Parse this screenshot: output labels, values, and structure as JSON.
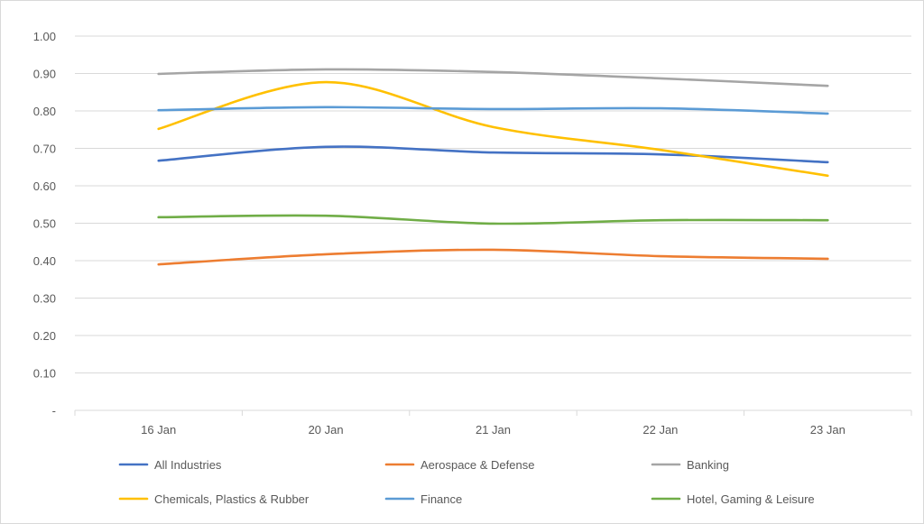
{
  "chart_data": {
    "type": "line",
    "title": "",
    "xlabel": "",
    "ylabel": "",
    "categories": [
      "16 Jan",
      "20 Jan",
      "21 Jan",
      "22 Jan",
      "23 Jan"
    ],
    "ylim": [
      0,
      1.0
    ],
    "yticks": [
      "-",
      "0.10",
      "0.20",
      "0.30",
      "0.40",
      "0.50",
      "0.60",
      "0.70",
      "0.80",
      "0.90",
      "1.00"
    ],
    "grid": true,
    "smooth": true,
    "legend_position": "bottom",
    "series": [
      {
        "name": "All Industries",
        "color": "#4472c4",
        "values": [
          0.667,
          0.704,
          0.689,
          0.684,
          0.663
        ]
      },
      {
        "name": "Aerospace & Defense",
        "color": "#ed7d31",
        "values": [
          0.39,
          0.417,
          0.429,
          0.412,
          0.405
        ]
      },
      {
        "name": "Banking",
        "color": "#a5a5a5",
        "values": [
          0.899,
          0.911,
          0.904,
          0.887,
          0.867
        ]
      },
      {
        "name": "Chemicals, Plastics & Rubber",
        "color": "#ffc000",
        "values": [
          0.752,
          0.877,
          0.757,
          0.696,
          0.627
        ]
      },
      {
        "name": "Finance",
        "color": "#5b9bd5",
        "values": [
          0.802,
          0.81,
          0.805,
          0.807,
          0.793
        ]
      },
      {
        "name": "Hotel, Gaming & Leisure",
        "color": "#70ad47",
        "values": [
          0.516,
          0.52,
          0.499,
          0.508,
          0.508
        ]
      }
    ]
  }
}
